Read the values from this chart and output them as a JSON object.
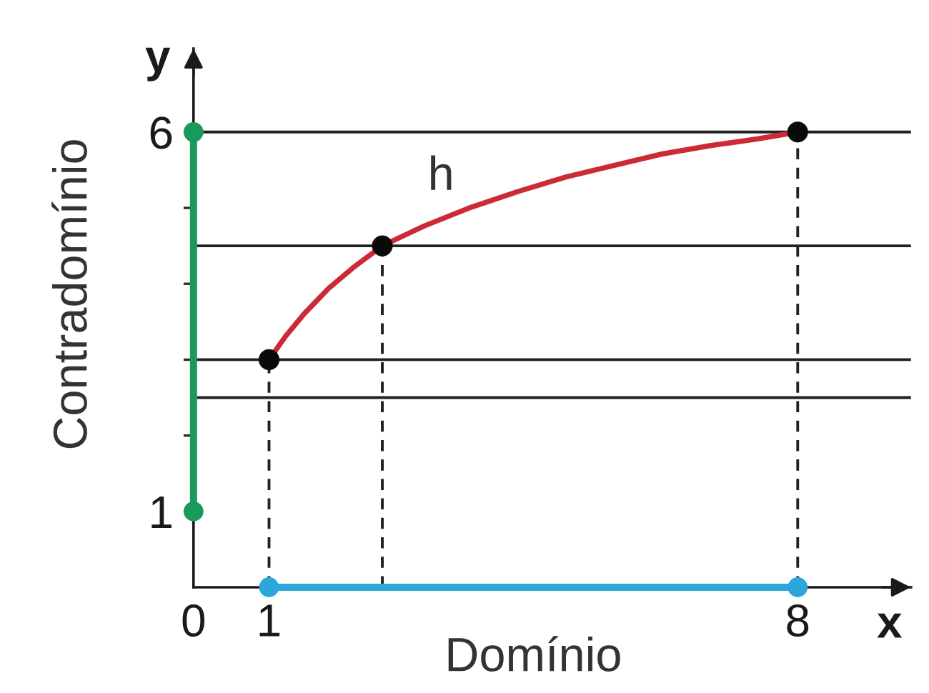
{
  "chart_data": {
    "type": "line",
    "xlabel": "x",
    "ylabel": "y",
    "xlim": [
      0,
      9.5
    ],
    "ylim": [
      0,
      7.1
    ],
    "xticks": [
      0,
      1,
      8
    ],
    "yticks": [
      1,
      {
        "value": 2,
        "label": null
      },
      {
        "value": 3,
        "label": null
      },
      {
        "value": 4,
        "label": null
      },
      {
        "value": 5,
        "label": null
      },
      6
    ],
    "annotations": [
      "Contradomínio"
    ],
    "ref_lines": [
      {
        "axis": "y",
        "value": 6,
        "color": "#222222"
      },
      {
        "axis": "y",
        "value": 4.5,
        "color": "#222222"
      },
      {
        "axis": "y",
        "value": 3,
        "color": "#222222"
      },
      {
        "axis": "y",
        "value": 2.5,
        "color": "#222222"
      }
    ],
    "series": [
      {
        "name": "h",
        "color": "#cc2b36",
        "marker": "none",
        "x": [
          1,
          1.22,
          1.47,
          1.79,
          2.11,
          2.5,
          3.05,
          3.68,
          4.31,
          4.94,
          5.57,
          6.2,
          6.84,
          7.47,
          8
        ],
        "values": [
          3,
          3.31,
          3.61,
          3.94,
          4.21,
          4.5,
          4.76,
          5.01,
          5.22,
          5.41,
          5.56,
          5.71,
          5.82,
          5.91,
          6
        ]
      },
      {
        "color": "#222222",
        "marker": "none",
        "line_style": "dashed",
        "x": [
          1,
          1
        ],
        "values": [
          0,
          3
        ]
      },
      {
        "color": "#222222",
        "marker": "none",
        "line_style": "dashed",
        "x": [
          2.5,
          2.5
        ],
        "values": [
          0,
          4.5
        ]
      },
      {
        "color": "#222222",
        "marker": "none",
        "line_style": "dashed",
        "x": [
          8,
          8
        ],
        "values": [
          0,
          6
        ]
      },
      {
        "name": "Domínio",
        "color": "#2aa8dc",
        "marker": "circle",
        "x": [
          1,
          8
        ],
        "values": [
          0,
          0
        ]
      },
      {
        "color": "#1a9a5a",
        "marker": "circle",
        "x": [
          0,
          0
        ],
        "values": [
          1,
          6
        ]
      },
      {
        "type": "scatter",
        "color": "#0a0a0a",
        "marker": "circle",
        "x": [
          1,
          2.5,
          8
        ],
        "values": [
          3,
          4.5,
          6
        ]
      }
    ]
  }
}
